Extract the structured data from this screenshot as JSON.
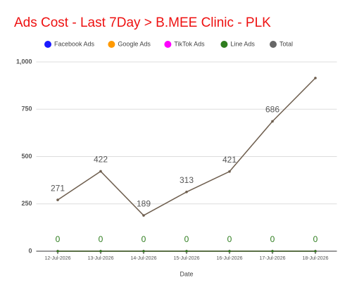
{
  "chart_data": {
    "type": "line",
    "title": "Ads Cost - Last 7Day > B.MEE Clinic - PLK",
    "title_color": "#ee1111",
    "x_label": "Date",
    "categories": [
      "12-Jul-2026",
      "13-Jul-2026",
      "14-Jul-2026",
      "15-Jul-2026",
      "16-Jul-2026",
      "17-Jul-2026",
      "18-Jul-2026"
    ],
    "series": [
      {
        "name": "Facebook Ads",
        "color": "#1a1aff",
        "values": [
          0,
          0,
          0,
          0,
          0,
          0,
          0
        ]
      },
      {
        "name": "Google Ads",
        "color": "#ff9900",
        "values": [
          0,
          0,
          0,
          0,
          0,
          0,
          0
        ]
      },
      {
        "name": "TikTok Ads",
        "color": "#ff00ff",
        "values": [
          0,
          0,
          0,
          0,
          0,
          0,
          0
        ]
      },
      {
        "name": "Line Ads",
        "color": "#2e7d1e",
        "values": [
          0,
          0,
          0,
          0,
          0,
          0,
          0
        ],
        "value_labels": [
          "0",
          "0",
          "0",
          "0",
          "0",
          "0",
          "0"
        ],
        "label_color": "#2e7d1e"
      },
      {
        "name": "Total",
        "color": "#6e5e4e",
        "legend_color": "#666666",
        "values": [
          271,
          422,
          189,
          313,
          421,
          686,
          915
        ],
        "value_labels": [
          "271",
          "422",
          "189",
          "313",
          "421",
          "686",
          null
        ],
        "label_color": "#555555"
      }
    ],
    "ylim": [
      0,
      1000
    ],
    "yticks": [
      0,
      250,
      500,
      750,
      {
        "value": 1000,
        "label": "1,000"
      }
    ],
    "grid": true
  }
}
